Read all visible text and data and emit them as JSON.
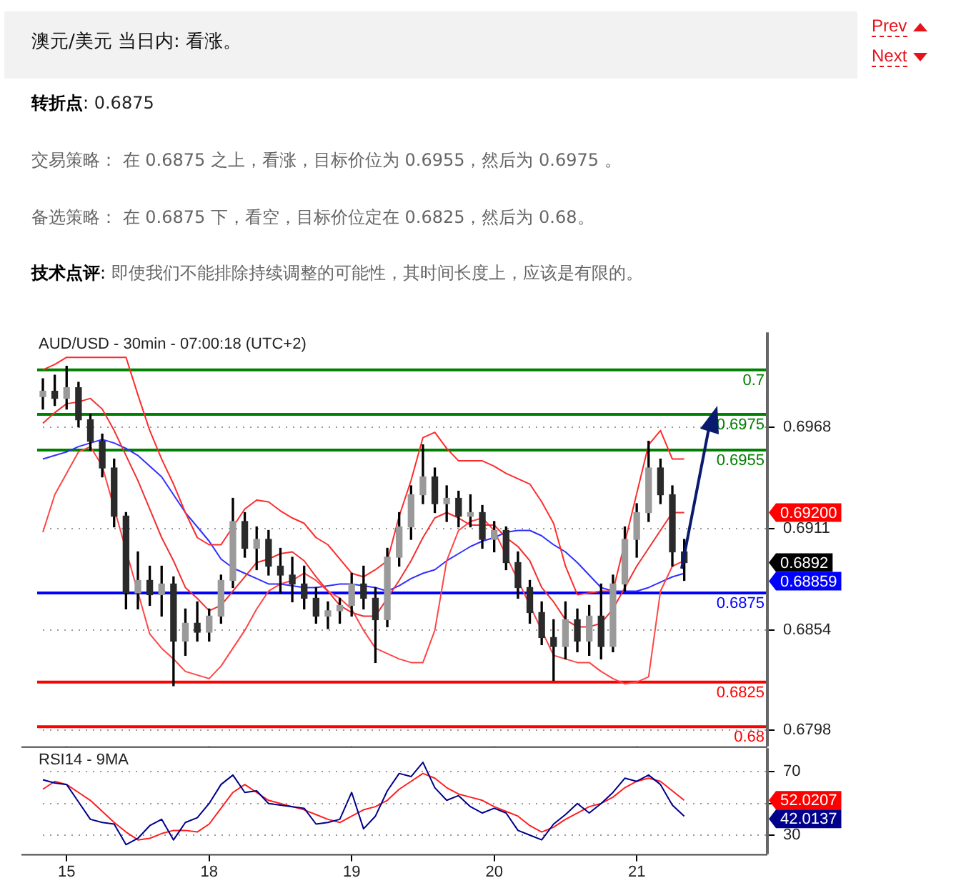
{
  "chart_data": [
    {
      "type": "other",
      "title": "澳元/美元 当日内: 看涨。",
      "annotations": [
        "转折点: 0.6875",
        "交易策略： 在 0.6875 之上，看涨，目标价位为 0.6955，然后为 0.6975 。",
        "备选策略： 在 0.6875 下，看空，目标价位定在 0.6825，然后为 0.68。",
        "技术点评: 即使我们不能排除持续调整的可能性，其时间长度上，应该是有限的。",
        "Prev",
        "Next"
      ]
    },
    {
      "type": "candlestick",
      "title": "AUD/USD - 30min - 07:00:18 (UTC+2)",
      "categories": [
        null,
        null,
        "15",
        null,
        null,
        null,
        null,
        null,
        null,
        null,
        null,
        null,
        null,
        null,
        "18",
        null,
        null,
        null,
        null,
        null,
        null,
        null,
        null,
        null,
        null,
        null,
        "19",
        null,
        null,
        null,
        null,
        null,
        null,
        null,
        null,
        null,
        null,
        null,
        "20",
        null,
        null,
        null,
        null,
        null,
        null,
        null,
        null,
        null,
        null,
        null,
        "21",
        null,
        null,
        null,
        null,
        null,
        null,
        null,
        null,
        null,
        null,
        null
      ],
      "ohlc": [
        [
          0.6985,
          0.6995,
          0.6978,
          0.6988
        ],
        [
          0.6988,
          0.6997,
          0.698,
          0.6984
        ],
        [
          0.6984,
          0.7002,
          0.6978,
          0.699
        ],
        [
          0.699,
          0.6993,
          0.6968,
          0.6972
        ],
        [
          0.6972,
          0.6975,
          0.6955,
          0.696
        ],
        [
          0.696,
          0.6964,
          0.694,
          0.6945
        ],
        [
          0.6945,
          0.695,
          0.6912,
          0.6918
        ],
        [
          0.6918,
          0.692,
          0.6866,
          0.6875
        ],
        [
          0.6875,
          0.6898,
          0.6866,
          0.6882
        ],
        [
          0.6882,
          0.689,
          0.6868,
          0.6874
        ],
        [
          0.6874,
          0.689,
          0.6862,
          0.688
        ],
        [
          0.688,
          0.6884,
          0.6823,
          0.6848
        ],
        [
          0.6848,
          0.6866,
          0.684,
          0.6858
        ],
        [
          0.6858,
          0.687,
          0.6848,
          0.6853
        ],
        [
          0.6853,
          0.6866,
          0.6848,
          0.6862
        ],
        [
          0.6862,
          0.6885,
          0.6858,
          0.6882
        ],
        [
          0.6882,
          0.6928,
          0.6878,
          0.6915
        ],
        [
          0.6915,
          0.692,
          0.6895,
          0.69
        ],
        [
          0.69,
          0.6912,
          0.6888,
          0.6905
        ],
        [
          0.6905,
          0.691,
          0.6885,
          0.689
        ],
        [
          0.689,
          0.69,
          0.6875,
          0.6885
        ],
        [
          0.6885,
          0.6895,
          0.687,
          0.688
        ],
        [
          0.688,
          0.689,
          0.6866,
          0.6872
        ],
        [
          0.6872,
          0.6878,
          0.6858,
          0.6862
        ],
        [
          0.6862,
          0.687,
          0.6855,
          0.6865
        ],
        [
          0.6865,
          0.6872,
          0.6858,
          0.6868
        ],
        [
          0.6868,
          0.6886,
          0.6862,
          0.688
        ],
        [
          0.688,
          0.689,
          0.6866,
          0.6872
        ],
        [
          0.6872,
          0.6878,
          0.6836,
          0.686
        ],
        [
          0.686,
          0.69,
          0.6856,
          0.6895
        ],
        [
          0.6895,
          0.692,
          0.689,
          0.6912
        ],
        [
          0.6912,
          0.6935,
          0.6905,
          0.693
        ],
        [
          0.693,
          0.6958,
          0.6925,
          0.694
        ],
        [
          0.694,
          0.6945,
          0.692,
          0.6925
        ],
        [
          0.6925,
          0.6935,
          0.6915,
          0.6928
        ],
        [
          0.6928,
          0.6932,
          0.6912,
          0.6918
        ],
        [
          0.6918,
          0.693,
          0.6912,
          0.692
        ],
        [
          0.692,
          0.6924,
          0.69,
          0.6905
        ],
        [
          0.6905,
          0.6915,
          0.6898,
          0.691
        ],
        [
          0.691,
          0.6912,
          0.6888,
          0.6892
        ],
        [
          0.6892,
          0.6898,
          0.6872,
          0.6878
        ],
        [
          0.6878,
          0.6882,
          0.6858,
          0.6864
        ],
        [
          0.6864,
          0.687,
          0.6846,
          0.685
        ],
        [
          0.685,
          0.686,
          0.6826,
          0.6845
        ],
        [
          0.6845,
          0.687,
          0.6838,
          0.686
        ],
        [
          0.686,
          0.6866,
          0.6842,
          0.6848
        ],
        [
          0.6848,
          0.6868,
          0.684,
          0.6862
        ],
        [
          0.6862,
          0.688,
          0.6838,
          0.6845
        ],
        [
          0.6845,
          0.6885,
          0.6842,
          0.688
        ],
        [
          0.688,
          0.6912,
          0.6876,
          0.6905
        ],
        [
          0.6905,
          0.6925,
          0.6895,
          0.692
        ],
        [
          0.692,
          0.696,
          0.6915,
          0.6945
        ],
        [
          0.6945,
          0.695,
          0.6925,
          0.693
        ],
        [
          0.693,
          0.6935,
          0.689,
          0.6898
        ],
        [
          0.6898,
          0.6905,
          0.6882,
          0.6892
        ],
        null,
        null,
        null,
        null,
        null,
        null,
        null
      ],
      "series": [
        {
          "type": "line",
          "color": "#ff2b2b",
          "values": [
            0.7,
            0.7003,
            0.7007,
            0.7007,
            0.7007,
            0.7007,
            0.7007,
            0.7007,
            0.6986,
            0.6966,
            0.695,
            0.6936,
            0.692,
            0.6906,
            0.6902,
            0.6902,
            0.6912,
            0.6922,
            0.6927,
            0.6926,
            0.6921,
            0.6917,
            0.6914,
            0.6906,
            0.6902,
            0.6894,
            0.6886,
            0.6884,
            0.6888,
            0.6893,
            0.6918,
            0.6938,
            0.6962,
            0.6965,
            0.6956,
            0.6949,
            0.6949,
            0.6949,
            0.6946,
            0.6942,
            0.6939,
            0.6936,
            0.6926,
            0.6914,
            0.689,
            0.6874,
            0.6875,
            0.6876,
            0.6876,
            null,
            null,
            0.6958,
            0.6966,
            0.695,
            0.695,
            null,
            null,
            null,
            null,
            null,
            null,
            null
          ]
        },
        {
          "type": "line",
          "color": "#f03030",
          "values": [
            0.697,
            0.6976,
            0.6981,
            0.6982,
            0.6984,
            0.6978,
            0.6966,
            0.6952,
            0.6938,
            0.6922,
            0.6906,
            0.6893,
            0.6878,
            0.6872,
            0.6865,
            0.6868,
            0.6876,
            0.6884,
            0.6892,
            0.6894,
            0.6897,
            0.6898,
            0.6893,
            0.6884,
            0.6876,
            0.6868,
            0.6864,
            0.6862,
            0.6862,
            0.6872,
            0.6882,
            0.6893,
            0.6906,
            0.6917,
            0.692,
            0.6917,
            0.6913,
            0.6913,
            0.6913,
            0.6906,
            0.6901,
            0.6893,
            0.6878,
            0.687,
            0.686,
            0.6856,
            0.6856,
            0.6858,
            0.6866,
            0.6878,
            0.689,
            0.69,
            0.691,
            0.692,
            0.692,
            null,
            null,
            null,
            null,
            null,
            null,
            null
          ]
        },
        {
          "type": "line",
          "color": "#ff4545",
          "values": [
            0.6909,
            0.693,
            0.6942,
            0.6954,
            0.6957,
            0.6946,
            null,
            null,
            null,
            0.6852,
            0.6844,
            0.6838,
            0.6831,
            0.6829,
            0.6827,
            0.6834,
            0.6844,
            0.6854,
            0.6866,
            0.6876,
            0.688,
            0.6882,
            0.6886,
            0.6882,
            0.6876,
            0.6872,
            0.6866,
            0.6854,
            0.6844,
            0.6841,
            0.6838,
            0.6836,
            0.6836,
            0.6854,
            0.6893,
            0.691,
            0.6915,
            0.6917,
            0.691,
            null,
            null,
            null,
            null,
            0.684,
            0.6838,
            0.6836,
            0.6836,
            0.6831,
            0.6827,
            0.6824,
            0.6825,
            0.6828,
            0.6876,
            0.689,
            0.6893,
            null,
            null,
            null,
            null,
            null,
            null,
            null
          ]
        },
        {
          "type": "line",
          "color": "#3030ff",
          "values": [
            0.695,
            0.6952,
            0.6954,
            0.6957,
            0.6959,
            0.6961,
            0.6959,
            0.6956,
            0.6952,
            0.6946,
            0.694,
            0.693,
            0.692,
            0.6912,
            0.6904,
            0.6894,
            0.6889,
            0.6886,
            0.6883,
            0.688,
            0.688,
            0.6879,
            0.6878,
            0.6878,
            0.6879,
            0.688,
            0.688,
            0.6879,
            0.6878,
            0.6876,
            0.6879,
            0.6883,
            0.6886,
            0.6888,
            0.6893,
            0.6897,
            0.6901,
            0.6904,
            0.6906,
            0.6909,
            0.691,
            0.691,
            0.6907,
            0.6902,
            0.6898,
            0.6892,
            0.6885,
            0.6878,
            0.6876,
            0.6876,
            0.6876,
            0.6878,
            0.6881,
            0.6884,
            0.6886,
            null,
            null,
            null,
            null,
            null,
            null,
            null
          ]
        }
      ],
      "ylim": [
        0.6789,
        0.7021
      ],
      "yticks": [
        0.6798,
        0.6854,
        0.6911,
        0.6968
      ],
      "grid": "y",
      "tick_labels": "y",
      "ref_lines": [
        {
          "axis": "y",
          "value": 0.7,
          "label": "0.7",
          "color": "#008000"
        },
        {
          "axis": "y",
          "value": 0.6975,
          "label": "0.6975",
          "color": "#008000"
        },
        {
          "axis": "y",
          "value": 0.6955,
          "label": "0.6955",
          "color": "#008000"
        },
        {
          "axis": "y",
          "value": 0.6875,
          "label": "0.6875",
          "color": "#0000ff"
        },
        {
          "axis": "y",
          "value": 0.6825,
          "label": "0.6825",
          "color": "#ff0000"
        },
        {
          "axis": "y",
          "value": 0.68,
          "label": "0.68",
          "color": "#ff0000"
        }
      ],
      "annotations": [
        "0.69200",
        "0.6892",
        "0.68859"
      ]
    },
    {
      "type": "line",
      "title": "RSI14 - 9MA",
      "categories": [
        null,
        null,
        "15",
        null,
        null,
        null,
        null,
        null,
        null,
        null,
        null,
        null,
        null,
        null,
        "18",
        null,
        null,
        null,
        null,
        null,
        null,
        null,
        null,
        null,
        null,
        null,
        "19",
        null,
        null,
        null,
        null,
        null,
        null,
        null,
        null,
        null,
        null,
        null,
        "20",
        null,
        null,
        null,
        null,
        null,
        null,
        null,
        null,
        null,
        null,
        null,
        "21",
        null,
        null,
        null,
        null,
        null,
        null,
        null,
        null,
        null,
        null,
        null
      ],
      "series": [
        {
          "color": "#00008b",
          "values": [
            65,
            63,
            62,
            51,
            40,
            38,
            37,
            24,
            28,
            36,
            40,
            27,
            38,
            41,
            50,
            62,
            68,
            57,
            58,
            50,
            49,
            48,
            47,
            37,
            38,
            40,
            57,
            34,
            42,
            58,
            69,
            67,
            76,
            60,
            52,
            55,
            48,
            44,
            47,
            44,
            33,
            30,
            27,
            37,
            43,
            50,
            44,
            50,
            57,
            66,
            64,
            68,
            62,
            49,
            42,
            null,
            null,
            null,
            null,
            null,
            null,
            null
          ]
        },
        {
          "color": "#ff2020",
          "values": [
            59,
            64,
            62,
            57,
            52,
            45,
            38,
            32,
            27,
            28,
            31,
            33,
            33,
            32,
            37,
            47,
            57,
            62,
            57,
            52,
            50,
            48,
            46,
            43,
            40,
            38,
            42,
            46,
            48,
            52,
            59,
            64,
            69,
            66,
            60,
            56,
            54,
            52,
            48,
            45,
            42,
            36,
            32,
            35,
            40,
            44,
            48,
            50,
            54,
            60,
            64,
            66,
            64,
            58,
            52,
            null,
            null,
            null,
            null,
            null,
            null,
            null
          ]
        }
      ],
      "ylim": [
        18,
        85
      ],
      "yticks": [
        30,
        {
          "value": 50,
          "label": null
        },
        70
      ],
      "grid": "y",
      "annotations": [
        "52.0207",
        "42.0137"
      ]
    }
  ]
}
